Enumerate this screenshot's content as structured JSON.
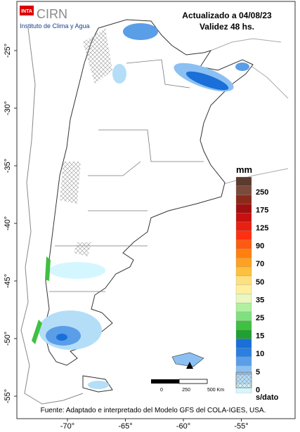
{
  "header": {
    "logo": "INTA",
    "brand": "CIRN",
    "institute": "Instituto de Clima y Agua",
    "updated": "Actualizado a 04/08/23",
    "validity": "Validez 48 hs."
  },
  "legend": {
    "unit": "mm",
    "colors": [
      "#5c3a2e",
      "#7b4a3a",
      "#8b2a1a",
      "#a01010",
      "#c81010",
      "#e82010",
      "#ff3010",
      "#ff5a10",
      "#ff8010",
      "#ffa020",
      "#ffc040",
      "#ffe080",
      "#fff0a0",
      "#e8f8c0",
      "#b0f0a0",
      "#80e080",
      "#40c040",
      "#20a030",
      "#1a6fd8",
      "#2a80e0",
      "#5a9ee8",
      "#8cc0f2",
      "#b4def8",
      "#d4f6ff"
    ],
    "labels": [
      "250",
      "175",
      "125",
      "90",
      "70",
      "50",
      "35",
      "25",
      "15",
      "10",
      "5",
      "0"
    ],
    "no_data": "s/dato"
  },
  "axes": {
    "lat_ticks": [
      {
        "value": -25,
        "label": "-25°"
      },
      {
        "value": -30,
        "label": "-30°"
      },
      {
        "value": -35,
        "label": "-35°"
      },
      {
        "value": -40,
        "label": "-40°"
      },
      {
        "value": -45,
        "label": "-45°"
      },
      {
        "value": -50,
        "label": "-50°"
      },
      {
        "value": -55,
        "label": "-55°"
      }
    ],
    "lon_ticks": [
      {
        "value": -70,
        "label": "-70°"
      },
      {
        "value": -65,
        "label": "-65°"
      },
      {
        "value": -60,
        "label": "-60°"
      },
      {
        "value": -55,
        "label": "-55°"
      }
    ]
  },
  "scale_bar": {
    "start": "0",
    "middle": "250",
    "end": "500 Km"
  },
  "source": "Fuente: Adaptado e interpretado del Modelo GFS del COLA-IGES, USA."
}
